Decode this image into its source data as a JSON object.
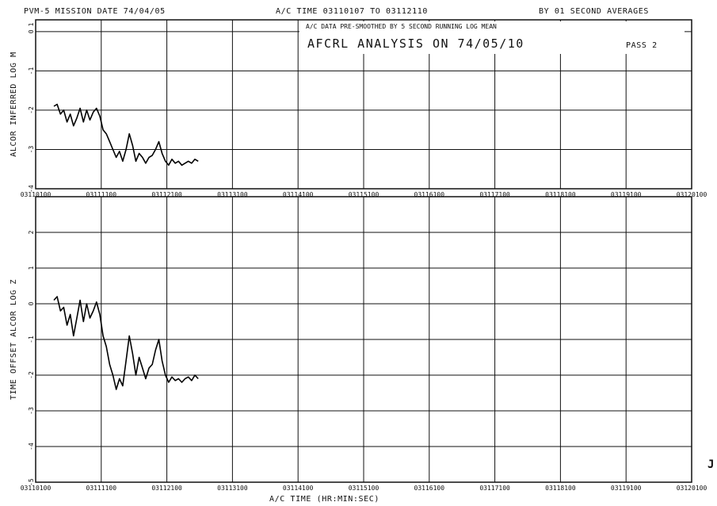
{
  "header": {
    "title": "PVM-5 MISSION DATE 74/04/05",
    "ac_time_range": "A/C TIME 03110107 TO 03112110",
    "averaging": "BY 01 SECOND AVERAGES"
  },
  "annotation": {
    "line1": "A/C DATA PRE-SMOOTHED BY  5 SECOND RUNNING LOG MEAN",
    "line2": "AFCRL ANALYSIS ON 74/05/10",
    "pass": "PASS 2"
  },
  "x_label": "A/C TIME   (HR:MIN:SEC)",
  "corner_mark": "J",
  "chart_data": [
    {
      "type": "line",
      "ylabel": "ALCOR INFERRED LOG M",
      "ylim": [
        -4,
        0.3
      ],
      "ytick_labels": [
        "-4",
        "-3",
        "-2",
        "-1",
        "0",
        "1"
      ],
      "xtick_labels": [
        "03110100",
        "03111100",
        "03112100",
        "03113100",
        "03114100",
        "03115100",
        "03116100",
        "03117100",
        "03118100",
        "03119100",
        "03120100"
      ],
      "grid": true,
      "series": [
        {
          "x_minutes": [
            0.0,
            0.05,
            0.1,
            0.15,
            0.2,
            0.25,
            0.3,
            0.35,
            0.4,
            0.45,
            0.5,
            0.55,
            0.6,
            0.65,
            0.7,
            0.75,
            0.8,
            0.85,
            0.9,
            0.95,
            1.0,
            1.05,
            1.1,
            1.15,
            1.2,
            1.25,
            1.3,
            1.35,
            1.4,
            1.45,
            1.5,
            1.55,
            1.6,
            1.65,
            1.7,
            1.75,
            1.8,
            1.85,
            1.9,
            1.95,
            2.0,
            2.05,
            2.1,
            2.15,
            2.2
          ],
          "y": [
            -1.9,
            -1.85,
            -2.1,
            -2.0,
            -2.3,
            -2.1,
            -2.4,
            -2.2,
            -1.95,
            -2.3,
            -2.0,
            -2.25,
            -2.05,
            -1.95,
            -2.15,
            -2.5,
            -2.6,
            -2.8,
            -3.0,
            -3.2,
            -3.05,
            -3.3,
            -3.0,
            -2.6,
            -2.9,
            -3.3,
            -3.1,
            -3.2,
            -3.35,
            -3.2,
            -3.15,
            -3.0,
            -2.8,
            -3.1,
            -3.3,
            -3.4,
            -3.25,
            -3.35,
            -3.3,
            -3.4,
            -3.35,
            -3.3,
            -3.35,
            -3.25,
            -3.3
          ]
        }
      ]
    },
    {
      "type": "line",
      "ylabel": "TIME OFFSET ALCOR LOG Z",
      "ylim": [
        -5,
        3
      ],
      "ytick_labels": [
        "-5",
        "-4",
        "-3",
        "-2",
        "-1",
        "0",
        "1",
        "2"
      ],
      "xtick_labels": [
        "03110100",
        "03111100",
        "03112100",
        "03113100",
        "03114100",
        "03115100",
        "03116100",
        "03117100",
        "03118100",
        "03119100",
        "03120100"
      ],
      "grid": true,
      "series": [
        {
          "x_minutes": [
            0.0,
            0.05,
            0.1,
            0.15,
            0.2,
            0.25,
            0.3,
            0.35,
            0.4,
            0.45,
            0.5,
            0.55,
            0.6,
            0.65,
            0.7,
            0.75,
            0.8,
            0.85,
            0.9,
            0.95,
            1.0,
            1.05,
            1.1,
            1.15,
            1.2,
            1.25,
            1.3,
            1.35,
            1.4,
            1.45,
            1.5,
            1.55,
            1.6,
            1.65,
            1.7,
            1.75,
            1.8,
            1.85,
            1.9,
            1.95,
            2.0,
            2.05,
            2.1,
            2.15,
            2.2
          ],
          "y": [
            0.1,
            0.2,
            -0.2,
            -0.1,
            -0.6,
            -0.3,
            -0.9,
            -0.4,
            0.1,
            -0.5,
            0.0,
            -0.4,
            -0.2,
            0.05,
            -0.3,
            -0.9,
            -1.2,
            -1.7,
            -2.0,
            -2.4,
            -2.1,
            -2.3,
            -1.6,
            -0.9,
            -1.4,
            -2.0,
            -1.5,
            -1.8,
            -2.1,
            -1.8,
            -1.7,
            -1.3,
            -1.0,
            -1.6,
            -2.0,
            -2.2,
            -2.05,
            -2.15,
            -2.1,
            -2.2,
            -2.1,
            -2.05,
            -2.15,
            -2.0,
            -2.1
          ]
        }
      ]
    }
  ]
}
